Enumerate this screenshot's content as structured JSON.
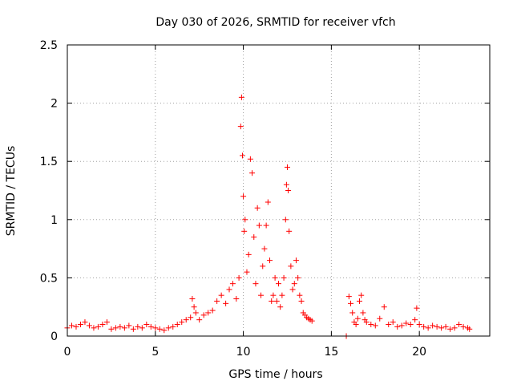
{
  "chart_data": {
    "type": "scatter",
    "title": "Day 030 of 2026, SRMTID for receiver vfch",
    "xlabel": "GPS time / hours",
    "ylabel": "SRMTID / TECUs",
    "xlim": [
      0,
      24
    ],
    "ylim": [
      0,
      2.5
    ],
    "x_ticks": [
      0,
      5,
      10,
      15,
      20
    ],
    "x_tick_labels": [
      "0",
      "5",
      "10",
      "15",
      "20"
    ],
    "y_ticks": [
      0,
      0.5,
      1,
      1.5,
      2,
      2.5
    ],
    "y_tick_labels": [
      "0",
      "0.5",
      "1",
      "1.5",
      "2",
      "2.5"
    ],
    "grid": true,
    "marker": "+",
    "marker_color": "#ff0000",
    "series": [
      {
        "name": "SRMTID",
        "x": [
          0.0,
          0.25,
          0.5,
          0.75,
          1.0,
          1.25,
          1.5,
          1.75,
          2.0,
          2.25,
          2.5,
          2.75,
          3.0,
          3.25,
          3.5,
          3.75,
          4.0,
          4.25,
          4.5,
          4.75,
          5.0,
          5.25,
          5.5,
          5.75,
          6.0,
          6.25,
          6.5,
          6.75,
          7.0,
          7.1,
          7.2,
          7.3,
          7.5,
          7.75,
          8.0,
          8.25,
          8.5,
          8.75,
          9.0,
          9.2,
          9.4,
          9.6,
          9.75,
          9.85,
          9.9,
          9.95,
          10.0,
          10.05,
          10.1,
          10.2,
          10.3,
          10.4,
          10.5,
          10.6,
          10.7,
          10.8,
          10.9,
          11.0,
          11.1,
          11.2,
          11.3,
          11.4,
          11.5,
          11.6,
          11.7,
          11.8,
          11.9,
          12.0,
          12.1,
          12.2,
          12.3,
          12.4,
          12.45,
          12.5,
          12.55,
          12.6,
          12.7,
          12.8,
          12.9,
          13.0,
          13.1,
          13.2,
          13.3,
          13.4,
          13.5,
          13.6,
          13.7,
          13.8,
          13.9,
          15.85,
          16.0,
          16.1,
          16.2,
          16.3,
          16.4,
          16.5,
          16.6,
          16.7,
          16.8,
          16.9,
          17.0,
          17.25,
          17.5,
          17.75,
          18.0,
          18.25,
          18.5,
          18.75,
          19.0,
          19.25,
          19.5,
          19.75,
          19.85,
          20.0,
          20.25,
          20.5,
          20.75,
          21.0,
          21.25,
          21.5,
          21.75,
          22.0,
          22.25,
          22.5,
          22.75,
          22.85
        ],
        "y": [
          0.07,
          0.09,
          0.08,
          0.1,
          0.12,
          0.09,
          0.07,
          0.08,
          0.1,
          0.12,
          0.06,
          0.07,
          0.08,
          0.07,
          0.09,
          0.06,
          0.08,
          0.07,
          0.1,
          0.08,
          0.07,
          0.06,
          0.05,
          0.07,
          0.08,
          0.1,
          0.12,
          0.14,
          0.16,
          0.32,
          0.25,
          0.2,
          0.14,
          0.18,
          0.2,
          0.22,
          0.3,
          0.35,
          0.28,
          0.4,
          0.45,
          0.32,
          0.5,
          1.8,
          2.05,
          1.55,
          1.2,
          0.9,
          1.0,
          0.55,
          0.7,
          1.52,
          1.4,
          0.85,
          0.45,
          1.1,
          0.95,
          0.35,
          0.6,
          0.75,
          0.95,
          1.15,
          0.65,
          0.3,
          0.35,
          0.5,
          0.3,
          0.45,
          0.25,
          0.35,
          0.5,
          1.0,
          1.3,
          1.45,
          1.25,
          0.9,
          0.6,
          0.4,
          0.45,
          0.65,
          0.5,
          0.35,
          0.3,
          0.2,
          0.18,
          0.16,
          0.15,
          0.14,
          0.13,
          0.0,
          0.34,
          0.28,
          0.2,
          0.12,
          0.1,
          0.15,
          0.3,
          0.35,
          0.2,
          0.14,
          0.12,
          0.1,
          0.09,
          0.15,
          0.25,
          0.1,
          0.12,
          0.08,
          0.09,
          0.11,
          0.1,
          0.14,
          0.24,
          0.1,
          0.08,
          0.07,
          0.09,
          0.08,
          0.07,
          0.08,
          0.06,
          0.07,
          0.1,
          0.08,
          0.07,
          0.06
        ]
      }
    ]
  }
}
